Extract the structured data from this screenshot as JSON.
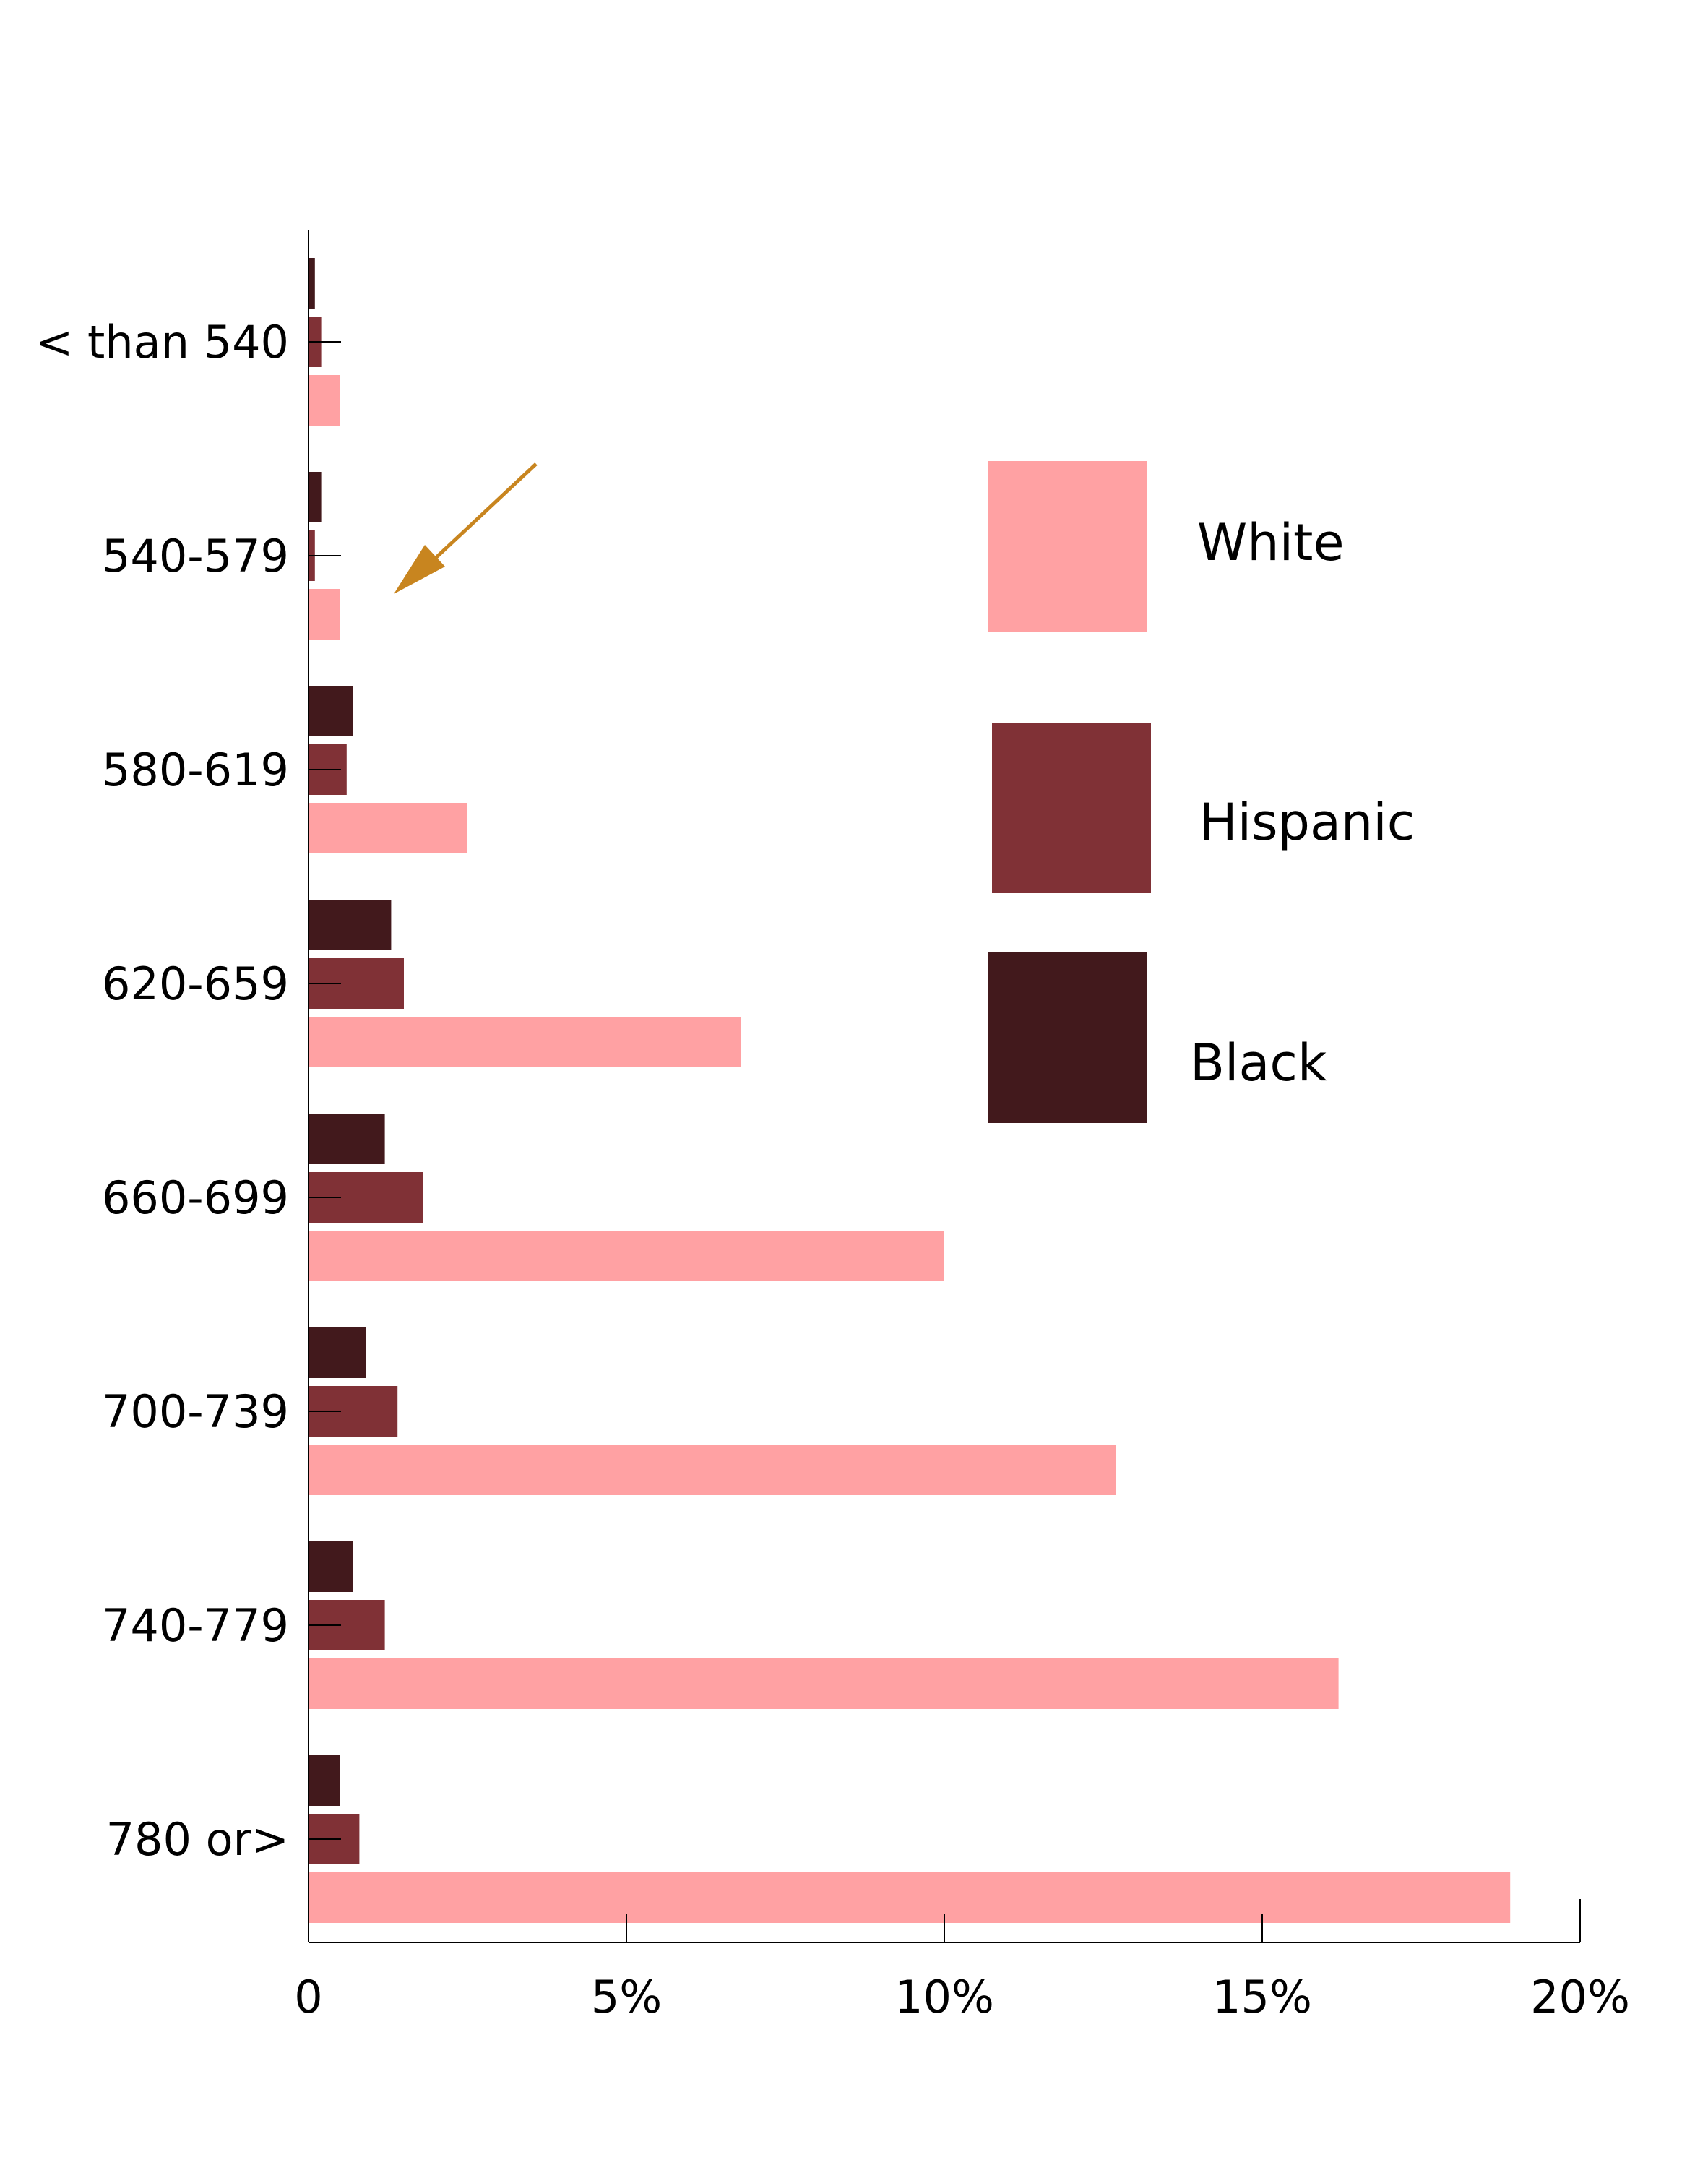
{
  "chart_data": {
    "type": "bar",
    "orientation": "horizontal",
    "categories": [
      "< than 540",
      "540-579",
      "580-619",
      "620-659",
      "660-699",
      "700-739",
      "740-779",
      "780 or>"
    ],
    "series": [
      {
        "name": "Black",
        "color": "#42191c",
        "values": [
          0.1,
          0.2,
          0.7,
          1.3,
          1.2,
          0.9,
          0.7,
          0.5
        ]
      },
      {
        "name": "Hispanic",
        "color": "#803136",
        "values": [
          0.2,
          0.1,
          0.6,
          1.5,
          1.8,
          1.4,
          1.2,
          0.8
        ]
      },
      {
        "name": "White",
        "color": "#ffa1a3",
        "values": [
          0.5,
          0.5,
          2.5,
          6.8,
          10.0,
          12.7,
          16.2,
          18.9
        ]
      }
    ],
    "legend_order": [
      "White",
      "Hispanic",
      "Black"
    ],
    "xlim": [
      0,
      20
    ],
    "xticks": [
      {
        "value": 0,
        "label": "0"
      },
      {
        "value": 5,
        "label": "5%"
      },
      {
        "value": 10,
        "label": "10%"
      },
      {
        "value": 15,
        "label": "15%"
      },
      {
        "value": 20,
        "label": "20%"
      }
    ],
    "annotation": {
      "type": "arrow",
      "color": "#c8851f",
      "target_category": "540-579"
    },
    "grid": false,
    "legend": "right"
  }
}
